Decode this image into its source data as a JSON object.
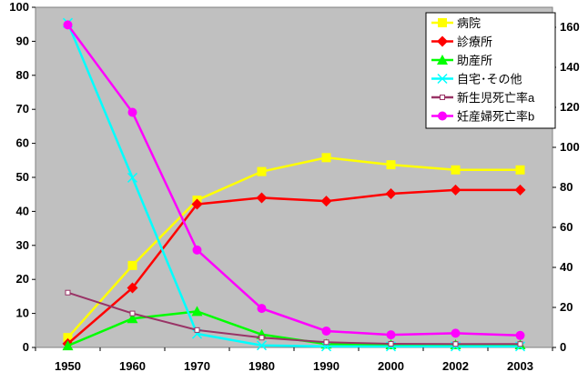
{
  "chart_data": {
    "type": "line",
    "title": "",
    "xlabel": "",
    "ylabel": "",
    "categories": [
      "1950",
      "1960",
      "1970",
      "1980",
      "1990",
      "2000",
      "2002",
      "2003"
    ],
    "y_left": {
      "min": 0,
      "max": 100,
      "ticks": [
        "0",
        "10",
        "20",
        "30",
        "40",
        "50",
        "60",
        "70",
        "80",
        "90",
        "100"
      ]
    },
    "y_right": {
      "min": 0,
      "max": 170,
      "ticks": [
        "0",
        "20",
        "40",
        "60",
        "80",
        "100",
        "120",
        "140",
        "160"
      ]
    },
    "grid": false,
    "plot_background": "#c0c0c0",
    "legend_position": "top-right",
    "series": [
      {
        "name": "病院",
        "axis": "left",
        "color": "#ffff00",
        "marker": "square",
        "values": [
          2.9,
          24.1,
          43.3,
          51.7,
          55.8,
          53.7,
          52.2,
          52.2
        ]
      },
      {
        "name": "診療所",
        "axis": "left",
        "color": "#ff0000",
        "marker": "diamond",
        "values": [
          1.1,
          17.5,
          42.1,
          44.0,
          43.0,
          45.2,
          46.3,
          46.3
        ]
      },
      {
        "name": "助産所",
        "axis": "left",
        "color": "#00ff00",
        "marker": "triangle",
        "values": [
          0.5,
          8.5,
          10.6,
          3.8,
          1.0,
          0.8,
          0.8,
          0.8
        ]
      },
      {
        "name": "自宅･その他",
        "axis": "left",
        "color": "#00ffff",
        "marker": "x",
        "values": [
          95.4,
          49.9,
          4.0,
          0.6,
          0.3,
          0.3,
          0.3,
          0.3
        ]
      },
      {
        "name": "新生児死亡率a",
        "axis": "right",
        "color": "#993366",
        "marker": "small-square",
        "values": [
          27.4,
          17.0,
          8.7,
          4.9,
          2.6,
          1.8,
          1.7,
          1.7
        ]
      },
      {
        "name": "妊産婦死亡率b",
        "axis": "right",
        "color": "#ff00ff",
        "marker": "circle",
        "values": [
          161.2,
          117.5,
          48.7,
          19.5,
          8.2,
          6.3,
          7.1,
          6.0
        ]
      }
    ]
  }
}
